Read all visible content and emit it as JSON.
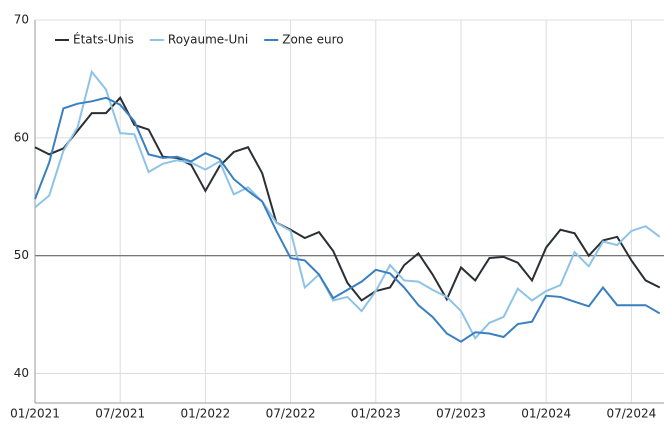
{
  "chart_data": {
    "type": "line",
    "categories": [
      "01/2021",
      null,
      null,
      null,
      null,
      null,
      "07/2021",
      null,
      null,
      null,
      null,
      null,
      "01/2022",
      null,
      null,
      null,
      null,
      null,
      "07/2022",
      null,
      null,
      null,
      null,
      null,
      "01/2023",
      null,
      null,
      null,
      null,
      null,
      "07/2023",
      null,
      null,
      null,
      null,
      null,
      "01/2024",
      null,
      null,
      null,
      null,
      null,
      "07/2024",
      null,
      null
    ],
    "series": [
      {
        "name": "États-Unis",
        "color": "#2b2f33",
        "values": [
          59.2,
          58.6,
          59.1,
          60.6,
          62.1,
          62.1,
          63.4,
          61.1,
          60.7,
          58.4,
          58.3,
          57.7,
          55.5,
          57.6,
          58.8,
          59.2,
          57.0,
          52.8,
          52.2,
          51.5,
          52.0,
          50.4,
          47.7,
          46.2,
          47.0,
          47.3,
          49.2,
          50.2,
          48.4,
          46.3,
          49.0,
          47.9,
          49.8,
          49.9,
          49.4,
          47.9,
          50.7,
          52.2,
          51.9,
          50.0,
          51.3,
          51.6,
          49.6,
          47.9,
          47.3
        ]
      },
      {
        "name": "Royaume-Uni",
        "color": "#8ec3e8",
        "values": [
          54.1,
          55.1,
          58.9,
          60.9,
          65.6,
          64.1,
          60.4,
          60.3,
          57.1,
          57.8,
          58.1,
          57.9,
          57.3,
          58.0,
          55.2,
          55.8,
          54.6,
          52.8,
          52.1,
          47.3,
          48.4,
          46.2,
          46.5,
          45.3,
          47.0,
          49.2,
          47.9,
          47.8,
          47.1,
          46.5,
          45.3,
          43.0,
          44.3,
          44.8,
          47.2,
          46.2,
          47.0,
          47.5,
          50.3,
          49.1,
          51.2,
          50.9,
          52.1,
          52.5,
          51.6
        ]
      },
      {
        "name": "Zone euro",
        "color": "#3a7fc0",
        "values": [
          54.8,
          57.9,
          62.5,
          62.9,
          63.1,
          63.4,
          62.8,
          61.4,
          58.6,
          58.3,
          58.4,
          58.0,
          58.7,
          58.2,
          56.5,
          55.5,
          54.6,
          52.1,
          49.8,
          49.6,
          48.4,
          46.4,
          47.1,
          47.8,
          48.8,
          48.5,
          47.3,
          45.8,
          44.8,
          43.4,
          42.7,
          43.5,
          43.4,
          43.1,
          44.2,
          44.4,
          46.6,
          46.5,
          46.1,
          45.7,
          47.3,
          45.8,
          45.8,
          45.8,
          45.1
        ]
      }
    ],
    "ylim": [
      37.5,
      70
    ],
    "yticks": [
      40,
      50,
      60,
      70
    ],
    "grid": true,
    "reference_line": 50,
    "legend": "top-left"
  }
}
